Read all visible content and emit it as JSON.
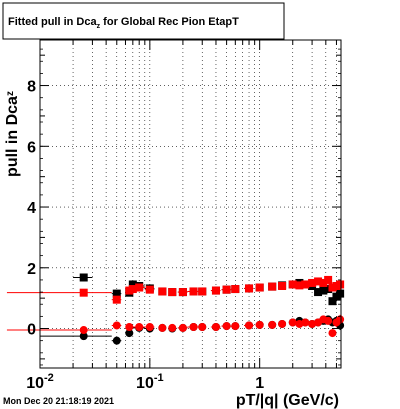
{
  "chart_data": {
    "type": "scatter",
    "title": "Fitted pull in Dca",
    "title_subscript": "z",
    "title_rest": " for Global Rec Pion EtapT",
    "xlabel": "pT/|q| (GeV/c)",
    "ylabel": "pull in Dca",
    "ylabel_subscript": "z",
    "x_scale": "log",
    "xlim": [
      0.01,
      5.5
    ],
    "ylim": [
      -1.3,
      9.5
    ],
    "grid": true,
    "x_tick_labels": [
      {
        "base": "10",
        "exp": "-2",
        "value": 0.01
      },
      {
        "base": "10",
        "exp": "-1",
        "value": 0.1
      },
      {
        "base": "1",
        "exp": "",
        "value": 1
      }
    ],
    "y_tick_labels": [
      "0",
      "2",
      "4",
      "6",
      "8"
    ],
    "timestamp": "Mon Dec 20 21:18:19 2021",
    "colors": {
      "black_series": "#000000",
      "red_series": "#ff0000",
      "grid": "#000000"
    },
    "series": [
      {
        "marker": "square",
        "color": "#000000",
        "x": [
          0.025,
          0.05,
          0.065,
          0.07,
          0.08,
          0.1,
          0.13,
          0.16,
          0.2,
          0.25,
          0.3,
          0.4,
          0.5,
          0.6,
          0.8,
          1.0,
          1.3,
          1.6,
          2.0,
          2.3,
          2.6,
          3.0,
          3.4,
          3.8,
          4.2,
          4.6,
          5.0,
          5.4
        ],
        "y": [
          1.68,
          1.15,
          1.18,
          1.45,
          1.4,
          1.32,
          1.22,
          1.2,
          1.2,
          1.22,
          1.22,
          1.25,
          1.28,
          1.3,
          1.32,
          1.35,
          1.38,
          1.42,
          1.45,
          1.5,
          1.45,
          1.4,
          1.2,
          1.25,
          1.3,
          0.9,
          1.05,
          1.15
        ],
        "x_err_low": [
          0.02,
          0.045,
          0.06,
          0.065,
          0.07,
          0.09,
          0.12,
          0.15,
          0.18,
          0.22,
          0.28,
          0.36,
          0.45,
          0.55,
          0.72,
          0.92,
          1.2,
          1.5,
          1.85,
          2.15,
          2.45,
          2.8,
          3.2,
          3.6,
          4.0,
          4.4,
          4.8,
          5.2
        ],
        "x_err_high": [
          0.03,
          0.055,
          0.07,
          0.075,
          0.09,
          0.11,
          0.14,
          0.17,
          0.22,
          0.28,
          0.32,
          0.44,
          0.55,
          0.65,
          0.88,
          1.08,
          1.4,
          1.7,
          2.15,
          2.45,
          2.75,
          3.2,
          3.6,
          4.0,
          4.4,
          4.8,
          5.2,
          5.5
        ],
        "y_err": [
          0.1,
          0.1,
          0.1,
          0.1,
          0.08,
          0.08,
          0.05,
          0.05,
          0.04,
          0.04,
          0.04,
          0.04,
          0.04,
          0.04,
          0.05,
          0.05,
          0.05,
          0.05,
          0.06,
          0.07,
          0.08,
          0.1,
          0.1,
          0.1,
          0.12,
          0.12,
          0.15,
          0.15
        ]
      },
      {
        "marker": "square",
        "color": "#ff0000",
        "x": [
          0.025,
          0.05,
          0.065,
          0.07,
          0.08,
          0.1,
          0.13,
          0.16,
          0.2,
          0.25,
          0.3,
          0.4,
          0.5,
          0.6,
          0.8,
          1.0,
          1.3,
          1.6,
          2.0,
          2.3,
          2.6,
          3.0,
          3.4,
          3.8,
          4.2,
          4.6,
          5.0,
          5.4
        ],
        "y": [
          1.18,
          0.95,
          1.25,
          1.3,
          1.35,
          1.28,
          1.22,
          1.2,
          1.2,
          1.22,
          1.22,
          1.25,
          1.28,
          1.3,
          1.32,
          1.35,
          1.38,
          1.4,
          1.45,
          1.42,
          1.45,
          1.5,
          1.55,
          1.5,
          1.6,
          1.35,
          1.4,
          1.45
        ],
        "x_err_low": [
          0.005,
          0.045,
          0.06,
          0.065,
          0.07,
          0.09,
          0.12,
          0.15,
          0.18,
          0.22,
          0.28,
          0.36,
          0.45,
          0.55,
          0.72,
          0.92,
          1.2,
          1.5,
          1.85,
          2.15,
          2.45,
          2.8,
          3.2,
          3.6,
          4.0,
          4.4,
          4.8,
          5.2
        ],
        "x_err_high": [
          0.045,
          0.055,
          0.07,
          0.075,
          0.09,
          0.11,
          0.14,
          0.17,
          0.22,
          0.28,
          0.32,
          0.44,
          0.55,
          0.65,
          0.88,
          1.08,
          1.4,
          1.7,
          2.15,
          2.45,
          2.75,
          3.2,
          3.6,
          4.0,
          4.4,
          4.8,
          5.2,
          5.5
        ],
        "y_err": [
          0.08,
          0.08,
          0.08,
          0.08,
          0.06,
          0.06,
          0.04,
          0.04,
          0.04,
          0.04,
          0.04,
          0.04,
          0.04,
          0.04,
          0.05,
          0.05,
          0.05,
          0.05,
          0.06,
          0.07,
          0.08,
          0.1,
          0.1,
          0.1,
          0.12,
          0.12,
          0.15,
          0.15
        ]
      },
      {
        "marker": "circle",
        "color": "#000000",
        "x": [
          0.025,
          0.05,
          0.065,
          0.08,
          0.1,
          0.13,
          0.16,
          0.2,
          0.25,
          0.3,
          0.4,
          0.5,
          0.6,
          0.8,
          1.0,
          1.3,
          1.6,
          2.0,
          2.3,
          2.6,
          3.0,
          3.4,
          3.8,
          4.2,
          4.6,
          5.0,
          5.4
        ],
        "y": [
          -0.25,
          -0.4,
          -0.15,
          0.02,
          0.0,
          0.02,
          0.0,
          0.02,
          0.05,
          0.05,
          0.05,
          0.08,
          0.08,
          0.1,
          0.12,
          0.12,
          0.15,
          0.2,
          0.25,
          0.2,
          0.15,
          0.2,
          0.25,
          0.3,
          0.2,
          0.25,
          0.1
        ],
        "x_err_low": [
          0.01,
          0.045,
          0.06,
          0.07,
          0.09,
          0.12,
          0.15,
          0.18,
          0.22,
          0.28,
          0.36,
          0.45,
          0.55,
          0.72,
          0.92,
          1.2,
          1.5,
          1.85,
          2.15,
          2.45,
          2.8,
          3.2,
          3.6,
          4.0,
          4.4,
          4.8,
          5.2
        ],
        "x_err_high": [
          0.045,
          0.055,
          0.07,
          0.09,
          0.11,
          0.14,
          0.17,
          0.22,
          0.28,
          0.32,
          0.44,
          0.55,
          0.65,
          0.88,
          1.08,
          1.4,
          1.7,
          2.15,
          2.45,
          2.75,
          3.2,
          3.6,
          4.0,
          4.4,
          4.8,
          5.2,
          5.5
        ],
        "y_err": [
          0.08,
          0.08,
          0.08,
          0.06,
          0.06,
          0.04,
          0.04,
          0.04,
          0.04,
          0.04,
          0.04,
          0.04,
          0.04,
          0.05,
          0.05,
          0.05,
          0.05,
          0.06,
          0.07,
          0.08,
          0.1,
          0.1,
          0.1,
          0.12,
          0.12,
          0.15,
          0.15
        ]
      },
      {
        "marker": "circle",
        "color": "#ff0000",
        "x": [
          0.025,
          0.05,
          0.065,
          0.08,
          0.1,
          0.13,
          0.16,
          0.2,
          0.25,
          0.3,
          0.4,
          0.5,
          0.6,
          0.8,
          1.0,
          1.3,
          1.6,
          2.0,
          2.3,
          2.6,
          3.0,
          3.4,
          3.8,
          4.2,
          4.6,
          5.0,
          5.4
        ],
        "y": [
          -0.05,
          0.1,
          0.05,
          0.05,
          0.05,
          0.02,
          0.02,
          0.02,
          0.05,
          0.05,
          0.05,
          0.08,
          0.08,
          0.1,
          0.12,
          0.12,
          0.15,
          0.2,
          0.15,
          0.2,
          0.15,
          0.2,
          0.3,
          0.25,
          -0.15,
          0.2,
          0.3
        ],
        "x_err_low": [
          0.005,
          0.045,
          0.06,
          0.07,
          0.09,
          0.12,
          0.15,
          0.18,
          0.22,
          0.28,
          0.36,
          0.45,
          0.55,
          0.72,
          0.92,
          1.2,
          1.5,
          1.85,
          2.15,
          2.45,
          2.8,
          3.2,
          3.6,
          4.0,
          4.4,
          4.8,
          5.2
        ],
        "x_err_high": [
          0.045,
          0.055,
          0.07,
          0.09,
          0.11,
          0.14,
          0.17,
          0.22,
          0.28,
          0.32,
          0.44,
          0.55,
          0.65,
          0.88,
          1.08,
          1.4,
          1.7,
          2.15,
          2.45,
          2.75,
          3.2,
          3.6,
          4.0,
          4.4,
          4.8,
          5.2,
          5.5
        ],
        "y_err": [
          0.06,
          0.06,
          0.06,
          0.05,
          0.05,
          0.04,
          0.04,
          0.04,
          0.04,
          0.04,
          0.04,
          0.04,
          0.04,
          0.05,
          0.05,
          0.05,
          0.05,
          0.06,
          0.07,
          0.08,
          0.1,
          0.1,
          0.1,
          0.12,
          0.12,
          0.15,
          0.15
        ]
      }
    ]
  }
}
